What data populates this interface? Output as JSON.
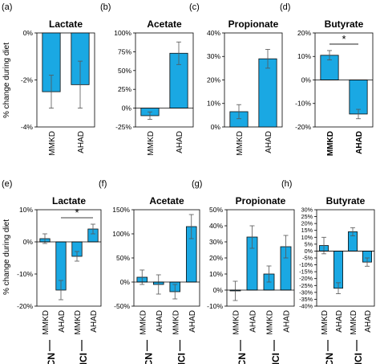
{
  "figure": {
    "ylabel": "% change during diet",
    "group_labels": [
      "CN",
      "MCI"
    ]
  },
  "chart_data": [
    {
      "type": "bar",
      "panel": "(a)",
      "title": "Lactate",
      "bold_categories": false,
      "categories": [
        "MMKD",
        "AHAD"
      ],
      "values": [
        -2.5,
        -2.2
      ],
      "errors": [
        0.7,
        1.0
      ],
      "ylim": [
        -4,
        0
      ],
      "yticks": [
        -4,
        -2,
        0
      ],
      "yticklabels": [
        "-4%",
        "-2%",
        "0%"
      ],
      "bar_color": "#1aa8e3"
    },
    {
      "type": "bar",
      "panel": "(b)",
      "title": "Acetate",
      "bold_categories": false,
      "categories": [
        "MMKD",
        "AHAD"
      ],
      "values": [
        -10,
        73
      ],
      "errors": [
        5,
        15
      ],
      "ylim": [
        -25,
        100
      ],
      "yticks": [
        -25,
        0,
        25,
        50,
        75,
        100
      ],
      "yticklabels": [
        "-25%",
        "0%",
        "25%",
        "50%",
        "75%",
        "100%"
      ],
      "bar_color": "#1aa8e3"
    },
    {
      "type": "bar",
      "panel": "(c)",
      "title": "Propionate",
      "bold_categories": false,
      "categories": [
        "MMKD",
        "AHAD"
      ],
      "values": [
        6.5,
        29
      ],
      "errors": [
        3,
        4
      ],
      "ylim": [
        0,
        40
      ],
      "yticks": [
        0,
        10,
        20,
        30,
        40
      ],
      "yticklabels": [
        "0%",
        "10%",
        "20%",
        "30%",
        "40%"
      ],
      "bar_color": "#1aa8e3"
    },
    {
      "type": "bar",
      "panel": "(d)",
      "title": "Butyrate",
      "bold_categories": true,
      "categories": [
        "MMKD",
        "AHAD"
      ],
      "values": [
        10.5,
        -14.5
      ],
      "errors": [
        2,
        2
      ],
      "ylim": [
        -20,
        20
      ],
      "yticks": [
        -20,
        -10,
        0,
        10,
        20
      ],
      "yticklabels": [
        "-20%",
        "-10%",
        "0%",
        "10%",
        "20%"
      ],
      "bar_color": "#1aa8e3",
      "significance": {
        "from": 0,
        "to": 1,
        "label": "*"
      }
    },
    {
      "type": "bar",
      "panel": "(e)",
      "title": "Lactate",
      "bold_categories": false,
      "categories": [
        "MMKD",
        "AHAD",
        "MMKD",
        "AHAD"
      ],
      "groups": [
        "CN",
        "CN",
        "MCI",
        "MCI"
      ],
      "values": [
        1,
        -15,
        -4.5,
        4
      ],
      "errors": [
        1.5,
        3,
        1.5,
        1.5
      ],
      "ylim": [
        -20,
        10
      ],
      "yticks": [
        -20,
        -10,
        0,
        10
      ],
      "yticklabels": [
        "-20%",
        "-10%",
        "0%",
        "10%"
      ],
      "bar_color": "#1aa8e3",
      "significance": {
        "from": 1,
        "to": 3,
        "label": "*"
      }
    },
    {
      "type": "bar",
      "panel": "(f)",
      "title": "Acetate",
      "bold_categories": false,
      "categories": [
        "MMKD",
        "AHAD",
        "MMKD",
        "AHAD"
      ],
      "groups": [
        "CN",
        "CN",
        "MCI",
        "MCI"
      ],
      "values": [
        10,
        -5,
        -20,
        115
      ],
      "errors": [
        15,
        20,
        15,
        25
      ],
      "ylim": [
        -50,
        150
      ],
      "yticks": [
        -50,
        0,
        50,
        100,
        150
      ],
      "yticklabels": [
        "-50%",
        "0%",
        "50%",
        "100%",
        "150%"
      ],
      "bar_color": "#1aa8e3"
    },
    {
      "type": "bar",
      "panel": "(g)",
      "title": "Propionate",
      "bold_categories": false,
      "categories": [
        "MMKD",
        "AHAD",
        "MMKD",
        "AHAD"
      ],
      "groups": [
        "CN",
        "CN",
        "MCI",
        "MCI"
      ],
      "values": [
        -0.5,
        33,
        10,
        27
      ],
      "errors": [
        6,
        7,
        5,
        7
      ],
      "ylim": [
        -10,
        50
      ],
      "yticks": [
        -10,
        0,
        10,
        20,
        30,
        40,
        50
      ],
      "yticklabels": [
        "-10%",
        "0%",
        "10%",
        "20%",
        "30%",
        "40%",
        "50%"
      ],
      "bar_color": "#1aa8e3"
    },
    {
      "type": "bar",
      "panel": "(h)",
      "title": "Butyrate",
      "bold_categories": false,
      "categories": [
        "MMKD",
        "AHAD",
        "MMKD",
        "AHAD"
      ],
      "groups": [
        "CN",
        "CN",
        "MCI",
        "MCI"
      ],
      "values": [
        4,
        -27,
        14,
        -8
      ],
      "errors": [
        6,
        4,
        3,
        3
      ],
      "ylim": [
        -40,
        30
      ],
      "yticks": [
        -40,
        -35,
        -30,
        -25,
        -20,
        -15,
        -10,
        -5,
        0,
        5,
        10,
        15,
        20,
        25,
        30
      ],
      "yticklabels": [
        "-40%",
        "-35%",
        "-30%",
        "-25%",
        "-20%",
        "-15%",
        "-10%",
        "-5%",
        "0%",
        "5%",
        "10%",
        "15%",
        "20%",
        "25%",
        "30%"
      ],
      "bar_color": "#1aa8e3"
    }
  ]
}
